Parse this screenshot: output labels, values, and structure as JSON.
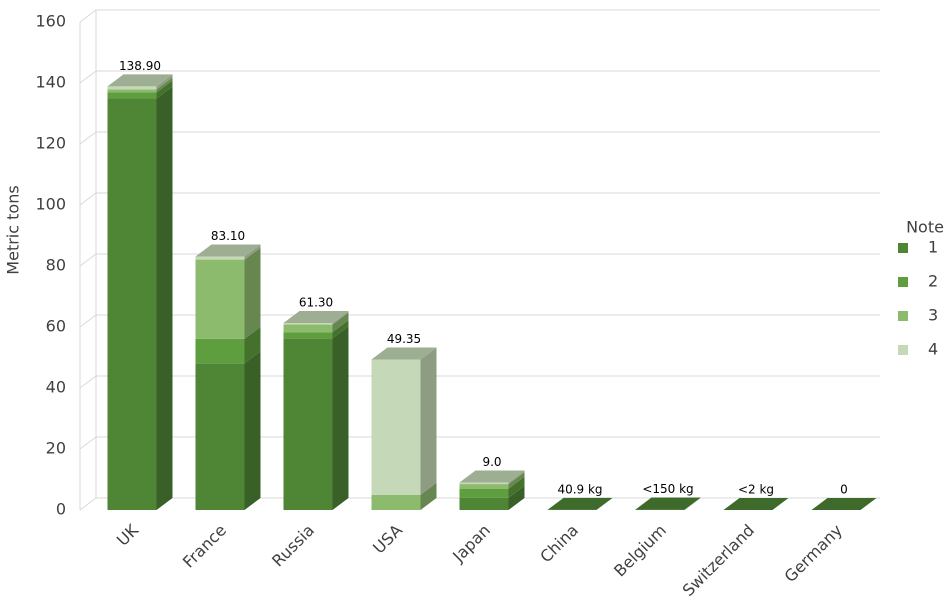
{
  "chart_data": {
    "type": "bar3d-stacked",
    "y_label": "Metric tons",
    "categories": [
      "UK",
      "France",
      "Russia",
      "USA",
      "Japan",
      "China",
      "Belgium",
      "Switzerland",
      "Germany"
    ],
    "series": [
      {
        "name": "1",
        "color": "#4e8636",
        "values": [
          134.9,
          48.1,
          56.3,
          0,
          4.0,
          0.0409,
          0.15,
          0.002,
          0
        ]
      },
      {
        "name": "2",
        "color": "#5e9e3e",
        "values": [
          2,
          8,
          2,
          0,
          3.0,
          0,
          0,
          0,
          0
        ]
      },
      {
        "name": "3",
        "color": "#8dbb6e",
        "values": [
          1,
          26,
          2.5,
          5,
          1.5,
          0,
          0,
          0,
          0
        ]
      },
      {
        "name": "4",
        "color": "#c5d9b8",
        "values": [
          1,
          1,
          0.5,
          44.35,
          0.5,
          0,
          0,
          0,
          0
        ]
      }
    ],
    "totals": [
      138.9,
      83.1,
      61.3,
      49.35,
      9.0,
      0.0409,
      0.15,
      0.002,
      0
    ],
    "value_labels": [
      "138.90",
      "83.10",
      "61.30",
      "49.35",
      "9.0",
      "40.9 kg",
      "<150 kg",
      "<2 kg",
      "0"
    ],
    "legend_title": "Note",
    "ylim": [
      0,
      160
    ],
    "yticks": [
      0,
      20,
      40,
      60,
      80,
      100,
      120,
      140,
      160
    ],
    "grid": true
  }
}
